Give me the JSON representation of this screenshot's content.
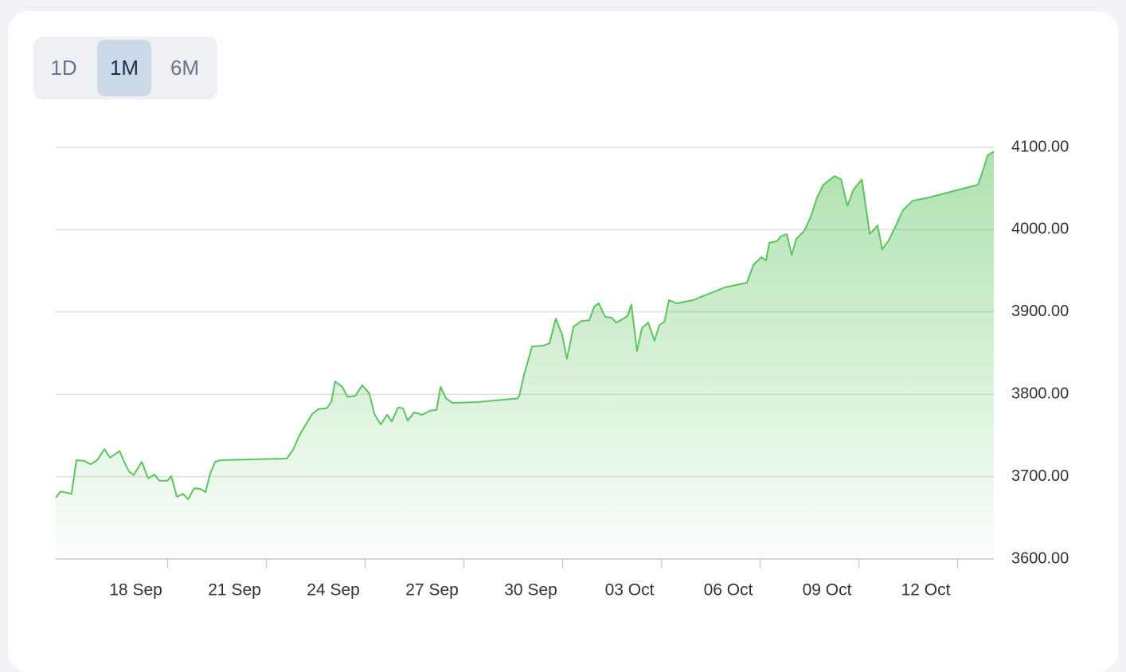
{
  "tabs": [
    "1D",
    "1M",
    "6M"
  ],
  "selected_tab": 1,
  "chart_data": {
    "type": "area",
    "color": "#5cc45e",
    "x": [
      14.6,
      14.75,
      15.08,
      15.23,
      15.47,
      15.66,
      15.86,
      16.08,
      16.25,
      16.54,
      16.68,
      16.83,
      16.97,
      17.21,
      17.41,
      17.6,
      17.75,
      17.99,
      18.11,
      18.28,
      18.47,
      18.62,
      18.81,
      19.0,
      19.15,
      19.29,
      19.44,
      19.63,
      21.62,
      21.81,
      22.0,
      22.2,
      22.39,
      22.58,
      22.83,
      22.97,
      23.09,
      23.31,
      23.46,
      23.7,
      23.91,
      24.13,
      24.28,
      24.47,
      24.67,
      24.81,
      25.0,
      25.15,
      25.29,
      25.49,
      25.73,
      25.97,
      26.17,
      26.29,
      26.46,
      26.65,
      27.42,
      28.63,
      28.68,
      28.83,
      29.07,
      29.41,
      29.6,
      29.79,
      29.99,
      30.13,
      30.33,
      30.57,
      30.81,
      30.96,
      31.1,
      31.29,
      31.49,
      31.63,
      31.97,
      32.09,
      32.26,
      32.41,
      32.6,
      32.79,
      32.94,
      33.09,
      33.23,
      33.47,
      33.96,
      34.92,
      35.6,
      35.79,
      36.04,
      36.18,
      36.28,
      36.52,
      36.62,
      36.81,
      36.96,
      37.1,
      37.34,
      37.54,
      37.73,
      37.92,
      38.26,
      38.46,
      38.65,
      38.84,
      39.09,
      39.33,
      39.57,
      39.71,
      39.91,
      40.1,
      40.34,
      40.63,
      41.12,
      42.62,
      42.77,
      42.91,
      43.1
    ],
    "values": [
      3674.5,
      3682,
      3679,
      3720,
      3719,
      3715,
      3720,
      3733.5,
      3723,
      3731,
      3718,
      3706,
      3702,
      3718,
      3698,
      3702.5,
      3695,
      3695,
      3700.6,
      3675.4,
      3679,
      3672.5,
      3686,
      3685,
      3681,
      3703.5,
      3718,
      3720,
      3722,
      3732.5,
      3750,
      3763.4,
      3776,
      3782,
      3783,
      3790.5,
      3815.7,
      3809,
      3797,
      3798,
      3811,
      3801,
      3776,
      3763.4,
      3775,
      3767,
      3784,
      3783,
      3768,
      3778,
      3775,
      3780,
      3781,
      3809,
      3795,
      3789.6,
      3790.5,
      3795,
      3798,
      3824,
      3858,
      3859,
      3862,
      3892,
      3872,
      3843,
      3882,
      3889,
      3890,
      3906.6,
      3910.4,
      3894,
      3893,
      3887,
      3895,
      3909,
      3852.4,
      3880.5,
      3887,
      3865,
      3884,
      3888,
      3914.3,
      3910.4,
      3914.3,
      3929.8,
      3935.6,
      3957,
      3966.5,
      3962.6,
      3984,
      3986,
      3991.7,
      3994.6,
      3969.4,
      3988.8,
      3998.5,
      4015.9,
      4039,
      4054.5,
      4065,
      4061,
      4029,
      4048.7,
      4061,
      3994.6,
      4005,
      3976,
      3987,
      4003,
      4023.6,
      4035,
      4039,
      4054.5,
      4072,
      4090,
      4095
    ],
    "xlim": [
      14.6,
      43.1
    ],
    "xticks": [
      {
        "value": 18,
        "label": "18 Sep"
      },
      {
        "value": 21,
        "label": "21 Sep"
      },
      {
        "value": 24,
        "label": "24 Sep"
      },
      {
        "value": 27,
        "label": "27 Sep"
      },
      {
        "value": 30,
        "label": "30 Sep"
      },
      {
        "value": 33,
        "label": "03 Oct"
      },
      {
        "value": 36,
        "label": "06 Oct"
      },
      {
        "value": 39,
        "label": "09 Oct"
      },
      {
        "value": 42,
        "label": "12 Oct"
      }
    ],
    "ylim": [
      3600,
      4100
    ],
    "yticks": [
      {
        "value": 3600,
        "label": "3600.00"
      },
      {
        "value": 3700,
        "label": "3700.00"
      },
      {
        "value": 3800,
        "label": "3800.00"
      },
      {
        "value": 3900,
        "label": "3900.00"
      },
      {
        "value": 4000,
        "label": "4000.00"
      },
      {
        "value": 4100,
        "label": "4100.00"
      }
    ],
    "grid": true
  }
}
